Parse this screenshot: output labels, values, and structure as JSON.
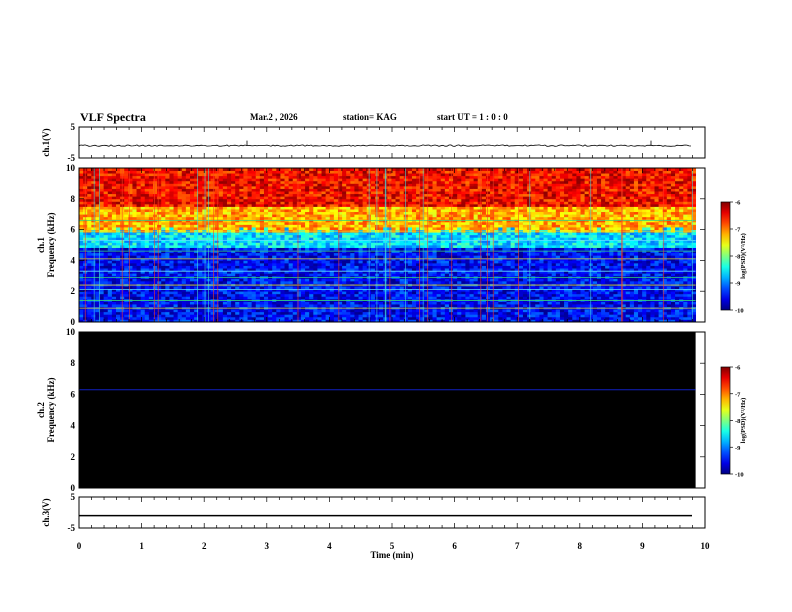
{
  "header": {
    "title": "VLF Spectra",
    "date": "Mar.2 , 2026",
    "station": "station= KAG",
    "start": "start UT =  1 : 0  : 0"
  },
  "chart_data": [
    {
      "type": "line",
      "panel": "ch1-waveform",
      "ylabel": "ch.1(V)",
      "ylim": [
        -5,
        5
      ],
      "yticks": [
        "5",
        "-5"
      ],
      "baseline": -1,
      "series": [
        {
          "values": [
            -1,
            -1
          ]
        }
      ]
    },
    {
      "type": "heatmap",
      "panel": "ch1-spectrogram",
      "ylabel": "ch.1 Frequency (kHz)",
      "ylim": [
        0,
        10
      ],
      "xlim": [
        0,
        9.85
      ],
      "yticks": [
        "0",
        "2",
        "4",
        "6",
        "8",
        "10"
      ],
      "colorbar": {
        "label": "log(PSD)(V²/Hz)",
        "range": [
          -10,
          -6
        ],
        "ticks": [
          "-6",
          "-7",
          "-8",
          "-9",
          "-10"
        ]
      },
      "bands_khz_level": [
        {
          "from": 0,
          "to": 4.8,
          "level": -9.5
        },
        {
          "from": 4.8,
          "to": 5.8,
          "level": -8.6
        },
        {
          "from": 5.8,
          "to": 7.5,
          "level": -7.2
        },
        {
          "from": 7.5,
          "to": 10,
          "level": -6.5
        }
      ],
      "narrowband_lines_khz": [
        0.9,
        1.4,
        2.1,
        2.4,
        2.9,
        3.3,
        4.1,
        4.6,
        5.3,
        5.9,
        6.6
      ]
    },
    {
      "type": "heatmap",
      "panel": "ch2-spectrogram",
      "ylabel": "ch.2 Frequency (kHz)",
      "ylim": [
        0,
        10
      ],
      "yticks": [
        "0",
        "2",
        "4",
        "6",
        "8",
        "10"
      ],
      "colorbar": {
        "label": "log(PSD)(V²/Hz)",
        "range": [
          -10,
          -6
        ],
        "ticks": [
          "-6",
          "-7",
          "-8",
          "-9",
          "-10"
        ]
      },
      "background_level": "below -10",
      "narrowband_lines_khz": [
        6.3
      ]
    },
    {
      "type": "line",
      "panel": "ch3-waveform",
      "ylabel": "ch.3(V)",
      "xlabel": "Time (min)",
      "ylim": [
        -5,
        5
      ],
      "xlim": [
        0,
        10
      ],
      "yticks": [
        "5",
        "-5"
      ],
      "xticks": [
        "0",
        "1",
        "2",
        "3",
        "4",
        "5",
        "6",
        "7",
        "8",
        "9",
        "10"
      ],
      "baseline": -1,
      "series": [
        {
          "values": [
            -1,
            -1
          ]
        }
      ]
    }
  ]
}
